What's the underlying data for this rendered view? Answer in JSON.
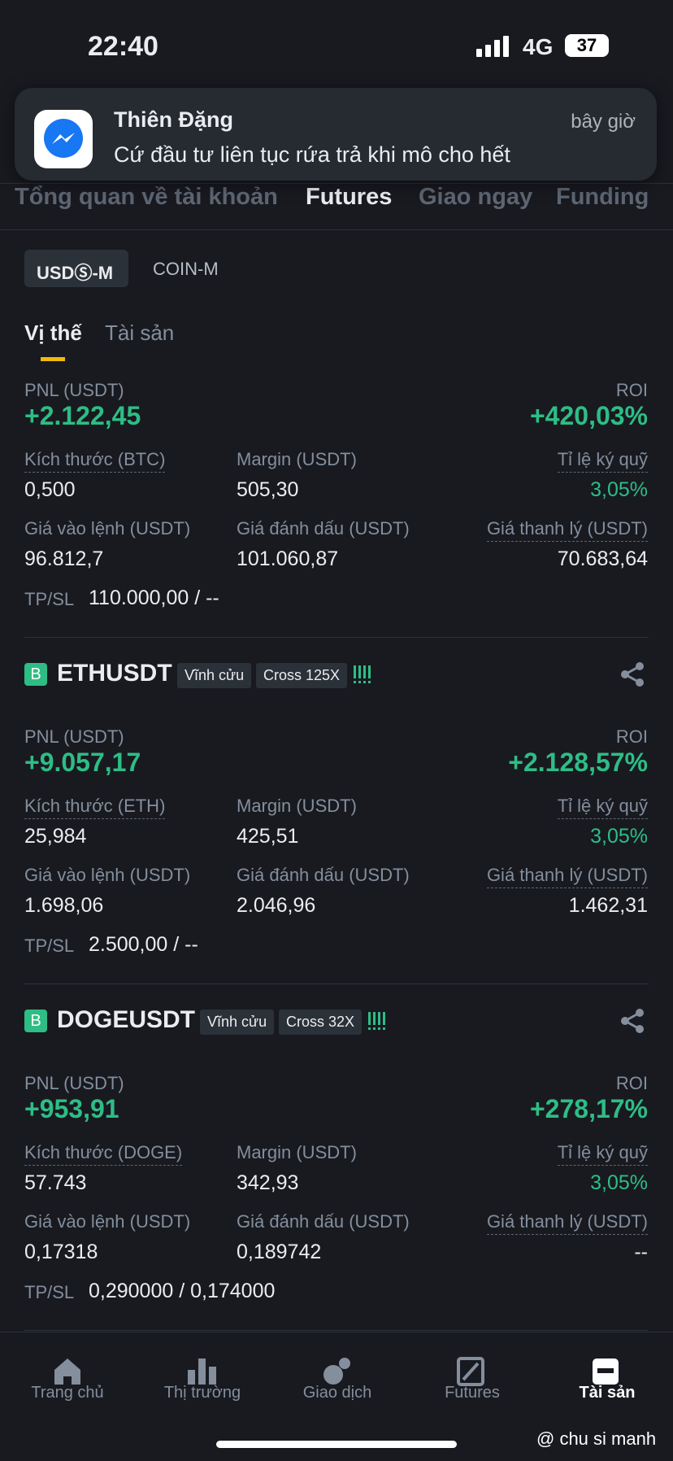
{
  "status_bar": {
    "time": "22:40",
    "network": "4G",
    "battery": "37"
  },
  "notification": {
    "sender": "Thiên Đặng",
    "time": "bây giờ",
    "message": "Cứ đầu tư liên tục rứa trả khi mô cho hết"
  },
  "tabs": [
    "Tổng quan về tài khoản",
    "Futures",
    "Giao ngay",
    "Funding"
  ],
  "segments": [
    "USDⓈ-M",
    "COIN-M"
  ],
  "subtabs": [
    "Vị thế",
    "Tài sản"
  ],
  "positions": [
    {
      "pnl_label": "PNL (USDT)",
      "pnl": "+2.122,45",
      "roi_label": "ROI",
      "roi": "+420,03%",
      "size_label": "Kích thước (BTC)",
      "size": "0,500",
      "margin_label": "Margin (USDT)",
      "margin": "505,30",
      "ratio_label": "Tỉ lệ ký quỹ",
      "ratio": "3,05%",
      "entry_label": "Giá vào lệnh (USDT)",
      "entry": "96.812,7",
      "mark_label": "Giá đánh dấu (USDT)",
      "mark": "101.060,87",
      "liq_label": "Giá thanh lý (USDT)",
      "liq": "70.683,64",
      "tpsl_label": "TP/SL",
      "tpsl": "110.000,00 / --"
    },
    {
      "badge": "B",
      "symbol": "ETHUSDT",
      "tags": [
        "Vĩnh cửu",
        "Cross 125X"
      ],
      "pnl_label": "PNL (USDT)",
      "pnl": "+9.057,17",
      "roi_label": "ROI",
      "roi": "+2.128,57%",
      "size_label": "Kích thước (ETH)",
      "size": "25,984",
      "margin_label": "Margin (USDT)",
      "margin": "425,51",
      "ratio_label": "Tỉ lệ ký quỹ",
      "ratio": "3,05%",
      "entry_label": "Giá vào lệnh (USDT)",
      "entry": "1.698,06",
      "mark_label": "Giá đánh dấu (USDT)",
      "mark": "2.046,96",
      "liq_label": "Giá thanh lý (USDT)",
      "liq": "1.462,31",
      "tpsl_label": "TP/SL",
      "tpsl": "2.500,00 / --"
    },
    {
      "badge": "B",
      "symbol": "DOGEUSDT",
      "tags": [
        "Vĩnh cửu",
        "Cross 32X"
      ],
      "pnl_label": "PNL (USDT)",
      "pnl": "+953,91",
      "roi_label": "ROI",
      "roi": "+278,17%",
      "size_label": "Kích thước (DOGE)",
      "size": "57.743",
      "margin_label": "Margin (USDT)",
      "margin": "342,93",
      "ratio_label": "Tỉ lệ ký quỹ",
      "ratio": "3,05%",
      "entry_label": "Giá vào lệnh (USDT)",
      "entry": "0,17318",
      "mark_label": "Giá đánh dấu (USDT)",
      "mark": "0,189742",
      "liq_label": "Giá thanh lý (USDT)",
      "liq": "--",
      "tpsl_label": "TP/SL",
      "tpsl": "0,290000 / 0,174000"
    }
  ],
  "nav": [
    "Trang chủ",
    "Thị trường",
    "Giao dịch",
    "Futures",
    "Tài sản"
  ],
  "watermark": "@ chu si manh"
}
